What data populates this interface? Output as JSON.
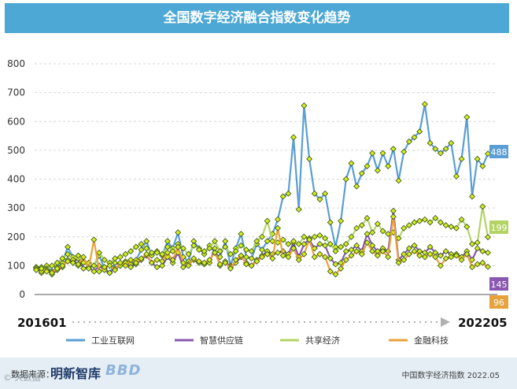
{
  "title": "全国数字经济融合指数变化趋势",
  "footer": {
    "source_label": "数据来源：",
    "logo_text": "明新智库",
    "logo_mark": "BBD",
    "watermark": "© 大数据",
    "note": "中国数字经济指数 2022.05"
  },
  "chart_data": {
    "type": "line",
    "title": "全国数字经济融合指数变化趋势",
    "x_start_label": "201601",
    "x_end_label": "202205",
    "ylim": [
      0,
      800
    ],
    "yticks": [
      0,
      100,
      200,
      300,
      400,
      500,
      600,
      700,
      800
    ],
    "grid": true,
    "legend_position": "bottom",
    "series": [
      {
        "name": "工业互联网",
        "color": "#5a9ed4",
        "end_label": "488",
        "values": [
          95,
          75,
          100,
          80,
          95,
          110,
          165,
          130,
          100,
          115,
          95,
          100,
          135,
          90,
          75,
          110,
          100,
          115,
          105,
          120,
          155,
          185,
          135,
          150,
          135,
          185,
          160,
          215,
          130,
          115,
          185,
          160,
          140,
          170,
          145,
          130,
          185,
          100,
          160,
          210,
          130,
          125,
          175,
          155,
          185,
          210,
          260,
          340,
          350,
          545,
          295,
          655,
          470,
          350,
          330,
          350,
          250,
          165,
          255,
          400,
          455,
          375,
          420,
          445,
          490,
          430,
          490,
          445,
          505,
          395,
          495,
          530,
          545,
          565,
          660,
          525,
          505,
          490,
          505,
          525,
          410,
          470,
          615,
          340,
          470,
          445,
          488
        ]
      },
      {
        "name": "智慧供应链",
        "color": "#8a58b0",
        "end_label": "145",
        "values": [
          95,
          80,
          90,
          70,
          85,
          95,
          120,
          110,
          125,
          90,
          95,
          80,
          100,
          85,
          75,
          90,
          100,
          110,
          95,
          105,
          120,
          135,
          110,
          95,
          100,
          130,
          110,
          145,
          95,
          105,
          120,
          110,
          105,
          110,
          160,
          100,
          115,
          95,
          110,
          130,
          110,
          100,
          120,
          135,
          150,
          140,
          145,
          150,
          140,
          180,
          130,
          175,
          190,
          160,
          175,
          170,
          125,
          105,
          110,
          150,
          155,
          170,
          150,
          210,
          170,
          150,
          160,
          150,
          290,
          120,
          140,
          160,
          170,
          150,
          145,
          165,
          145,
          135,
          150,
          140,
          140,
          130,
          150,
          120,
          160,
          150,
          145
        ]
      },
      {
        "name": "共享经济",
        "color": "#b3d465",
        "end_label": "199",
        "values": [
          90,
          95,
          85,
          100,
          110,
          125,
          140,
          120,
          135,
          110,
          110,
          100,
          145,
          120,
          110,
          125,
          130,
          140,
          150,
          165,
          175,
          160,
          145,
          145,
          140,
          165,
          150,
          175,
          160,
          140,
          170,
          155,
          150,
          160,
          185,
          150,
          165,
          140,
          150,
          170,
          155,
          150,
          185,
          200,
          255,
          185,
          180,
          190,
          175,
          185,
          175,
          200,
          195,
          200,
          205,
          195,
          175,
          150,
          165,
          175,
          200,
          230,
          240,
          265,
          215,
          245,
          220,
          210,
          215,
          195,
          230,
          240,
          250,
          255,
          260,
          250,
          265,
          250,
          240,
          235,
          230,
          260,
          235,
          175,
          180,
          305,
          199
        ]
      },
      {
        "name": "金融科技",
        "color": "#e8a23c",
        "end_label": "96",
        "values": [
          85,
          90,
          80,
          75,
          90,
          100,
          115,
          110,
          105,
          130,
          90,
          190,
          80,
          95,
          100,
          85,
          110,
          100,
          120,
          110,
          125,
          140,
          110,
          120,
          115,
          145,
          120,
          165,
          110,
          100,
          125,
          115,
          110,
          120,
          145,
          105,
          110,
          90,
          120,
          135,
          105,
          100,
          115,
          130,
          140,
          125,
          230,
          135,
          130,
          160,
          120,
          140,
          190,
          130,
          140,
          130,
          80,
          70,
          90,
          120,
          135,
          150,
          140,
          180,
          150,
          135,
          150,
          130,
          270,
          110,
          120,
          140,
          150,
          135,
          130,
          140,
          130,
          100,
          125,
          130,
          135,
          120,
          140,
          95,
          105,
          110,
          96
        ]
      }
    ]
  }
}
